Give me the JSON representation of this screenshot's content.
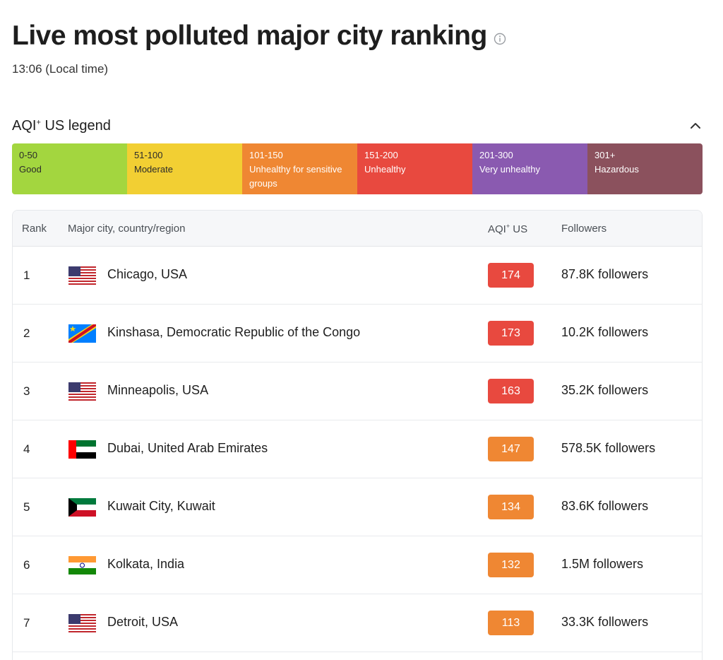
{
  "header": {
    "title": "Live most polluted major city ranking",
    "local_time": "13:06 (Local time)"
  },
  "legend": {
    "title": "AQI",
    "title_sup": "+",
    "title_suffix": " US legend",
    "toggle_icon": "chevron-up-icon",
    "segments": [
      {
        "range": "0-50",
        "label": "Good",
        "color": "#a3d63f"
      },
      {
        "range": "51-100",
        "label": "Moderate",
        "color": "#f2cf33"
      },
      {
        "range": "101-150",
        "label": "Unhealthy for sensitive groups",
        "color": "#ef8733"
      },
      {
        "range": "151-200",
        "label": "Unhealthy",
        "color": "#e8493f"
      },
      {
        "range": "201-300",
        "label": "Very unhealthy",
        "color": "#8a5ab0"
      },
      {
        "range": "301+",
        "label": "Hazardous",
        "color": "#8b515d"
      }
    ]
  },
  "table": {
    "headers": {
      "rank": "Rank",
      "city": "Major city, country/region",
      "aqi": "AQI",
      "aqi_sup": "+",
      "aqi_suffix": " US",
      "followers": "Followers"
    },
    "rows": [
      {
        "rank": "1",
        "flag": "us-flag-icon",
        "city": "Chicago, USA",
        "aqi": "174",
        "aqi_color": "#e8493f",
        "followers": "87.8K followers"
      },
      {
        "rank": "2",
        "flag": "drc-flag-icon",
        "city": "Kinshasa, Democratic Republic of the Congo",
        "aqi": "173",
        "aqi_color": "#e8493f",
        "followers": "10.2K followers"
      },
      {
        "rank": "3",
        "flag": "us-flag-icon",
        "city": "Minneapolis, USA",
        "aqi": "163",
        "aqi_color": "#e8493f",
        "followers": "35.2K followers"
      },
      {
        "rank": "4",
        "flag": "uae-flag-icon",
        "city": "Dubai, United Arab Emirates",
        "aqi": "147",
        "aqi_color": "#ef8733",
        "followers": "578.5K followers"
      },
      {
        "rank": "5",
        "flag": "kuwait-flag-icon",
        "city": "Kuwait City, Kuwait",
        "aqi": "134",
        "aqi_color": "#ef8733",
        "followers": "83.6K followers"
      },
      {
        "rank": "6",
        "flag": "india-flag-icon",
        "city": "Kolkata, India",
        "aqi": "132",
        "aqi_color": "#ef8733",
        "followers": "1.5M followers"
      },
      {
        "rank": "7",
        "flag": "us-flag-icon",
        "city": "Detroit, USA",
        "aqi": "113",
        "aqi_color": "#ef8733",
        "followers": "33.3K followers"
      }
    ]
  }
}
